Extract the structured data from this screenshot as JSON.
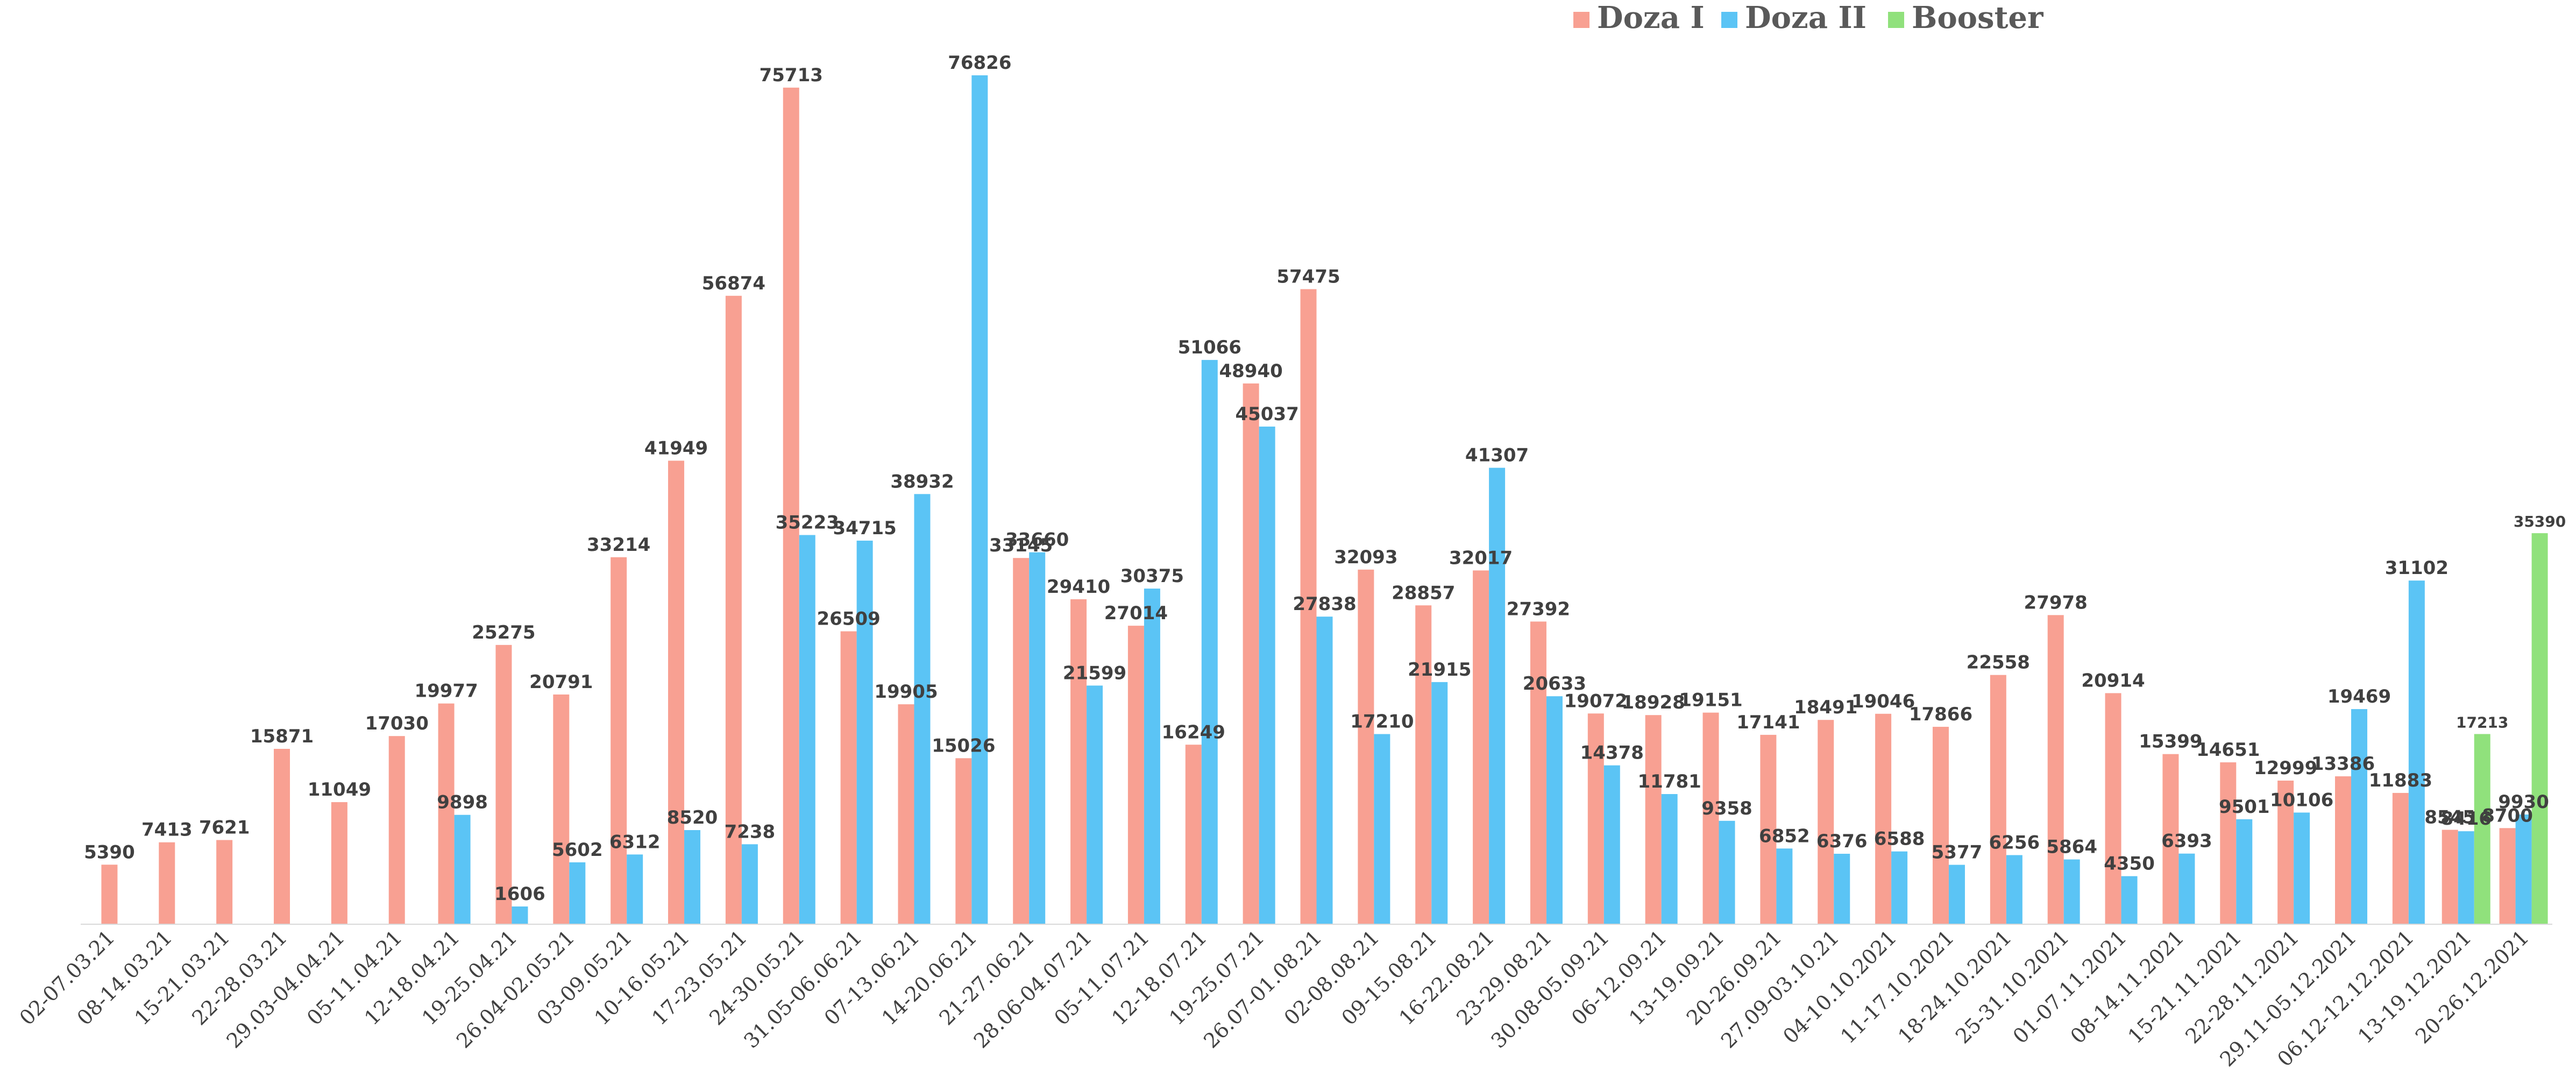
{
  "chart_data": {
    "type": "bar",
    "title": "",
    "xlabel": "",
    "ylabel": "",
    "ylim": [
      0,
      80000
    ],
    "grid": false,
    "legend_position": "top-right",
    "categories": [
      "02-07.03.21",
      "08-14.03.21",
      "15-21.03.21",
      "22-28.03.21",
      "29.03-04.04.21",
      "05-11.04.21",
      "12-18.04.21",
      "19-25.04.21",
      "26.04-02.05.21",
      "03-09.05.21",
      "10-16.05.21",
      "17-23.05.21",
      "24-30.05.21",
      "31.05-06.06.21",
      "07-13.06.21",
      "14-20.06.21",
      "21-27.06.21",
      "28.06-04.07.21",
      "05-11.07.21",
      "12-18.07.21",
      "19-25.07.21",
      "26.07-01.08.21",
      "02-08.08.21",
      "09-15.08.21",
      "16-22.08.21",
      "23-29.08.21",
      "30.08-05.09.21",
      "06-12.09.21",
      "13-19.09.21",
      "20-26.09.21",
      "27.09-03.10.21",
      "04-10.10.2021",
      "11-17.10.2021",
      "18-24.10.2021",
      "25-31.10.2021",
      "01-07.11.2021",
      "08-14.11.2021",
      "15-21.11.2021",
      "22-28.11.2021",
      "29.11-05.12.2021",
      "06.12-12.12.2021",
      "13-19.12.2021",
      "20-26.12.2021"
    ],
    "series": [
      {
        "name": "Doza I",
        "color": "#F8A092",
        "values": [
          5390,
          7413,
          7621,
          15871,
          11049,
          17030,
          19977,
          25275,
          20791,
          33214,
          41949,
          56874,
          75713,
          26509,
          19905,
          15026,
          33145,
          29410,
          27014,
          16249,
          48940,
          57475,
          32093,
          28857,
          32017,
          27392,
          19072,
          18928,
          19151,
          17141,
          18491,
          19046,
          17866,
          22558,
          27978,
          20914,
          15399,
          14651,
          12999,
          13386,
          11883,
          8545,
          8700
        ]
      },
      {
        "name": "Doza II",
        "color": "#5BC4F5",
        "values": [
          null,
          null,
          null,
          null,
          null,
          null,
          9898,
          1606,
          5602,
          6312,
          8520,
          7238,
          35223,
          34715,
          38932,
          76826,
          33660,
          21599,
          30375,
          51066,
          45037,
          27838,
          17210,
          21915,
          41307,
          20633,
          14378,
          11781,
          9358,
          6852,
          6376,
          6588,
          5377,
          6256,
          5864,
          4350,
          6393,
          9501,
          10106,
          19469,
          31102,
          8416,
          9930
        ]
      },
      {
        "name": "Booster",
        "color": "#90E17C",
        "values": [
          null,
          null,
          null,
          null,
          null,
          null,
          null,
          null,
          null,
          null,
          null,
          null,
          null,
          null,
          null,
          null,
          null,
          null,
          null,
          null,
          null,
          null,
          null,
          null,
          null,
          null,
          null,
          null,
          null,
          null,
          null,
          null,
          null,
          null,
          null,
          null,
          null,
          null,
          null,
          null,
          null,
          17213,
          35390
        ]
      }
    ]
  }
}
